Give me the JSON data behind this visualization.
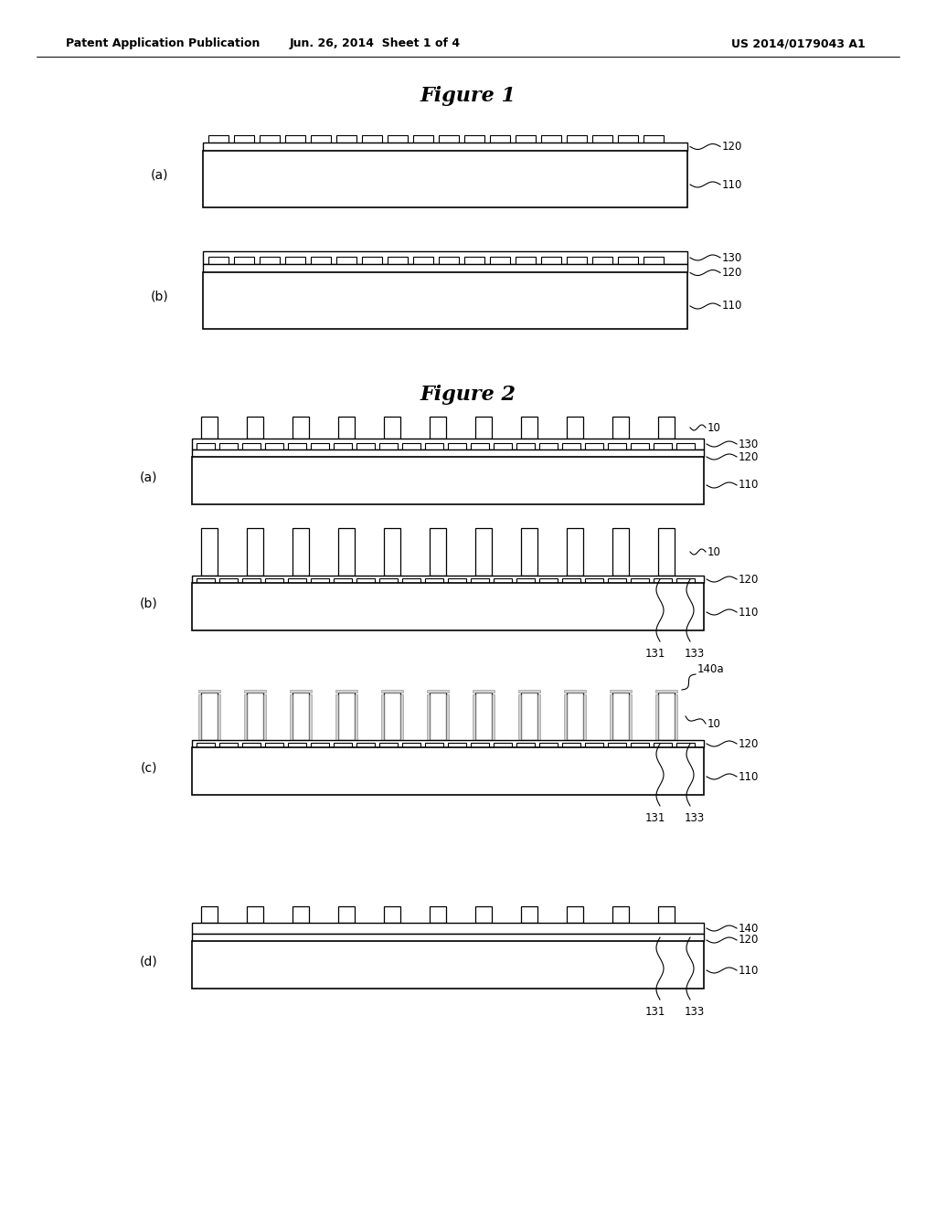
{
  "bg_color": "#ffffff",
  "header_left": "Patent Application Publication",
  "header_mid": "Jun. 26, 2014  Sheet 1 of 4",
  "header_right": "US 2014/0179043 A1",
  "fig1_title": "Figure 1",
  "fig2_title": "Figure 2"
}
